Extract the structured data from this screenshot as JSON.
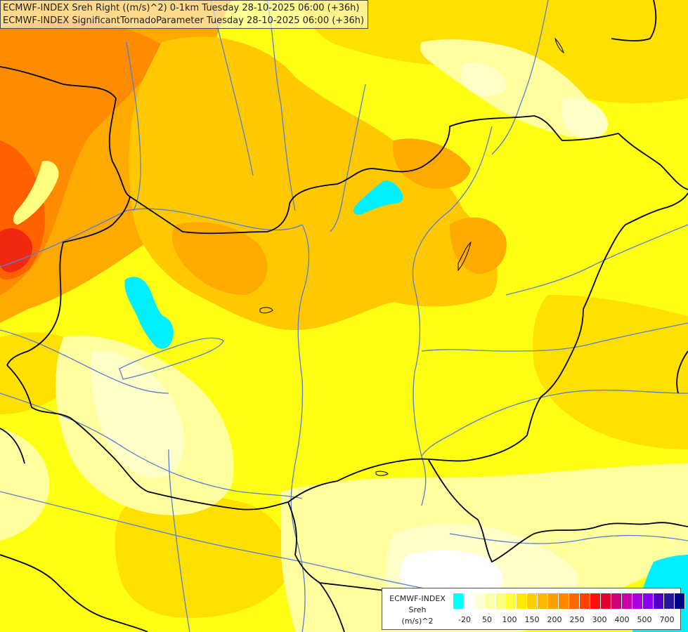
{
  "titles": {
    "line1": "ECMWF-INDEX Sreh Right ((m/s)^2) 0-1km Tuesday 28-10-2025 06:00 (+36h)",
    "line2": "ECMWF-INDEX SignificantTornadoParameter Tuesday 28-10-2025 06:00 (+36h)"
  },
  "legend": {
    "model": "ECMWF-INDEX",
    "param": "Sreh",
    "unit": "(m/s)^2",
    "colors": [
      "#00ffff",
      "#ffffff",
      "#ffffd8",
      "#ffffa8",
      "#ffff80",
      "#ffff40",
      "#ffea00",
      "#ffd000",
      "#ffba00",
      "#ffa000",
      "#ff8800",
      "#ff6a00",
      "#ff4000",
      "#ff1010",
      "#dd0030",
      "#cc0077",
      "#cc00aa",
      "#aa00dd",
      "#8800ee",
      "#5000c8",
      "#2818a0",
      "#000080"
    ],
    "ticks": [
      "-20",
      "50",
      "100",
      "150",
      "200",
      "250",
      "300",
      "400",
      "500",
      "700"
    ]
  },
  "map_colors": {
    "cyan": "#00f0ff",
    "pale": "#ffffc8",
    "light_yellow": "#ffffa0",
    "yellow": "#ffff14",
    "gold": "#ffe000",
    "deep_gold": "#ffc800",
    "orange": "#ffaa00",
    "dark_orange": "#ff8c00",
    "red_orange": "#ff6000",
    "red": "#f02810",
    "border": "#000000",
    "river": "#5a7dd2"
  }
}
